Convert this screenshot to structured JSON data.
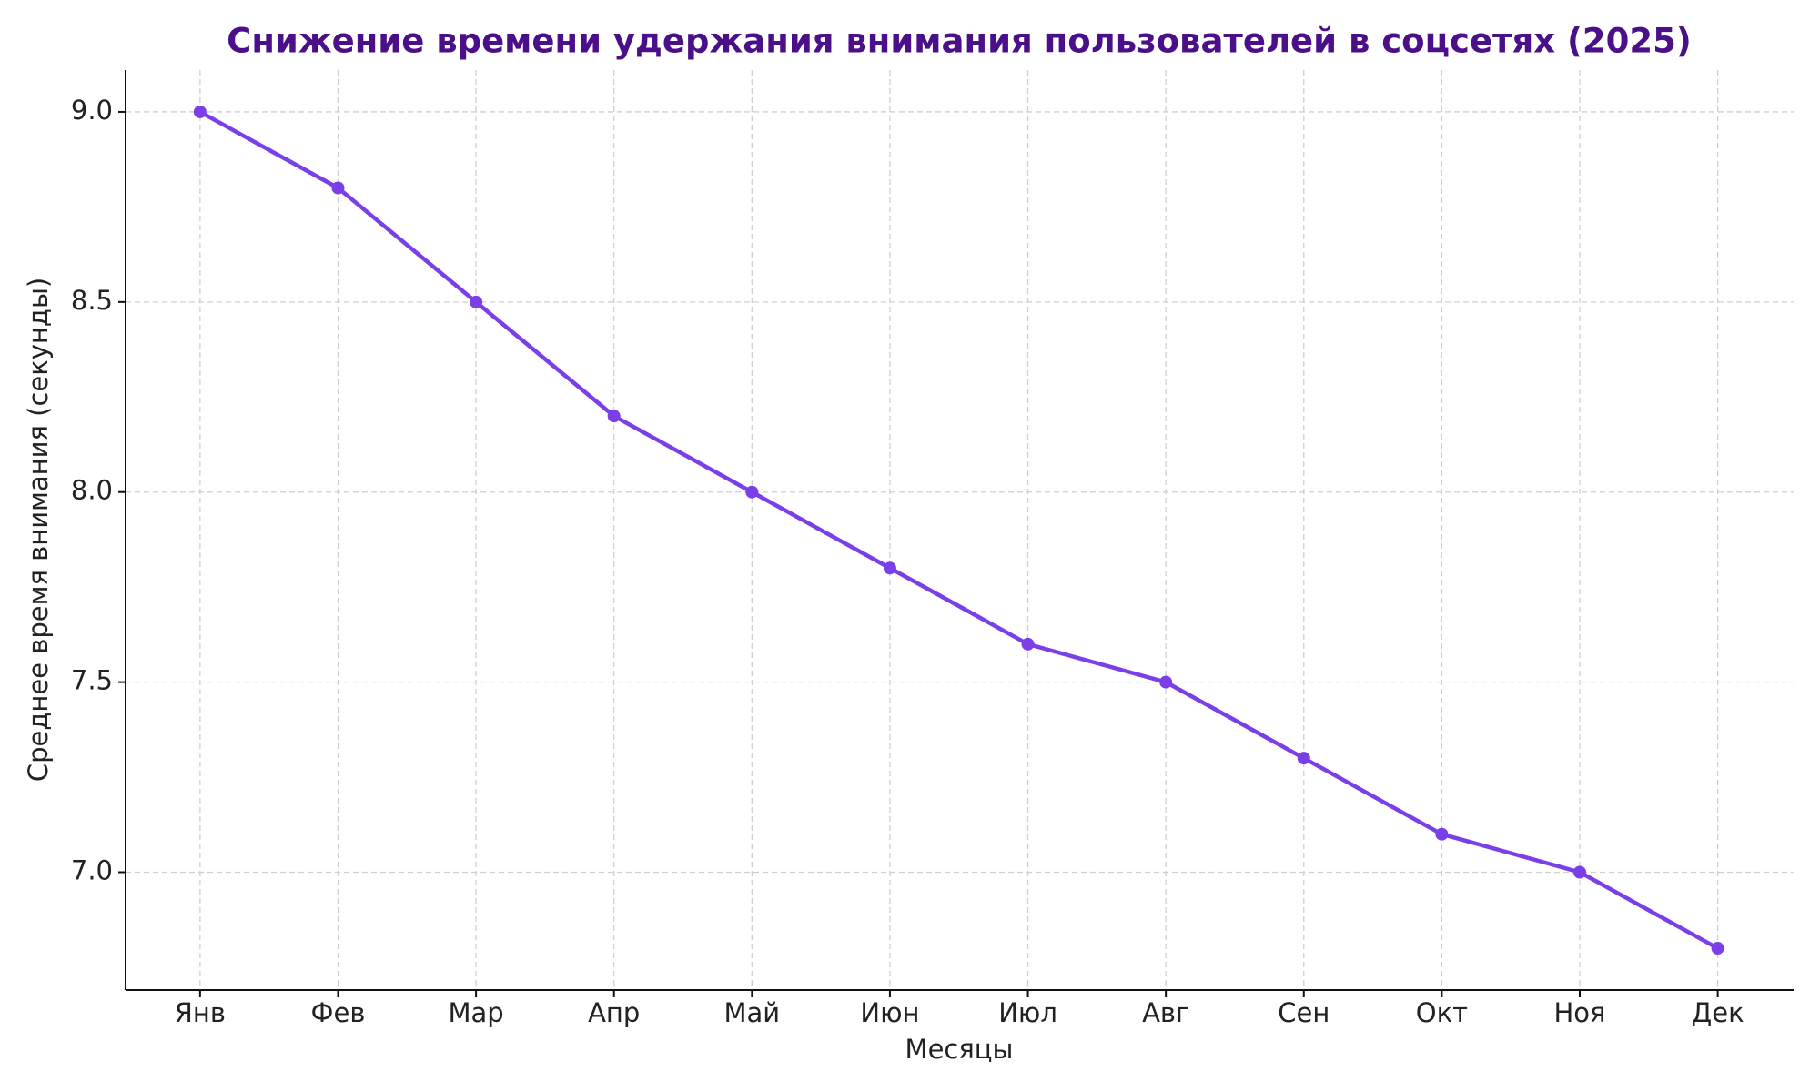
{
  "chart_data": {
    "type": "line",
    "title": "Снижение времени удержания внимания пользователей в соцсетях (2025)",
    "x_label": "Месяцы",
    "y_label": "Среднее время внимания (секунды)",
    "categories": [
      "Янв",
      "Фев",
      "Мар",
      "Апр",
      "Май",
      "Июн",
      "Июл",
      "Авг",
      "Сен",
      "Окт",
      "Ноя",
      "Дек"
    ],
    "series": [
      {
        "name": "Среднее время внимания",
        "color": "#7b3fe8",
        "values": [
          9.0,
          8.8,
          8.5,
          8.2,
          8.0,
          7.8,
          7.6,
          7.5,
          7.3,
          7.1,
          7.0,
          6.8
        ]
      }
    ],
    "ylim": [
      6.69,
      9.11
    ],
    "yticks": [
      {
        "value": 7,
        "label": "7.0"
      },
      {
        "value": 7.5,
        "label": "7.5"
      },
      {
        "value": 8,
        "label": "8.0"
      },
      {
        "value": 8.5,
        "label": "8.5"
      },
      {
        "value": 9,
        "label": "9.0"
      }
    ],
    "grid": true,
    "title_color": "#4b0f8a"
  }
}
